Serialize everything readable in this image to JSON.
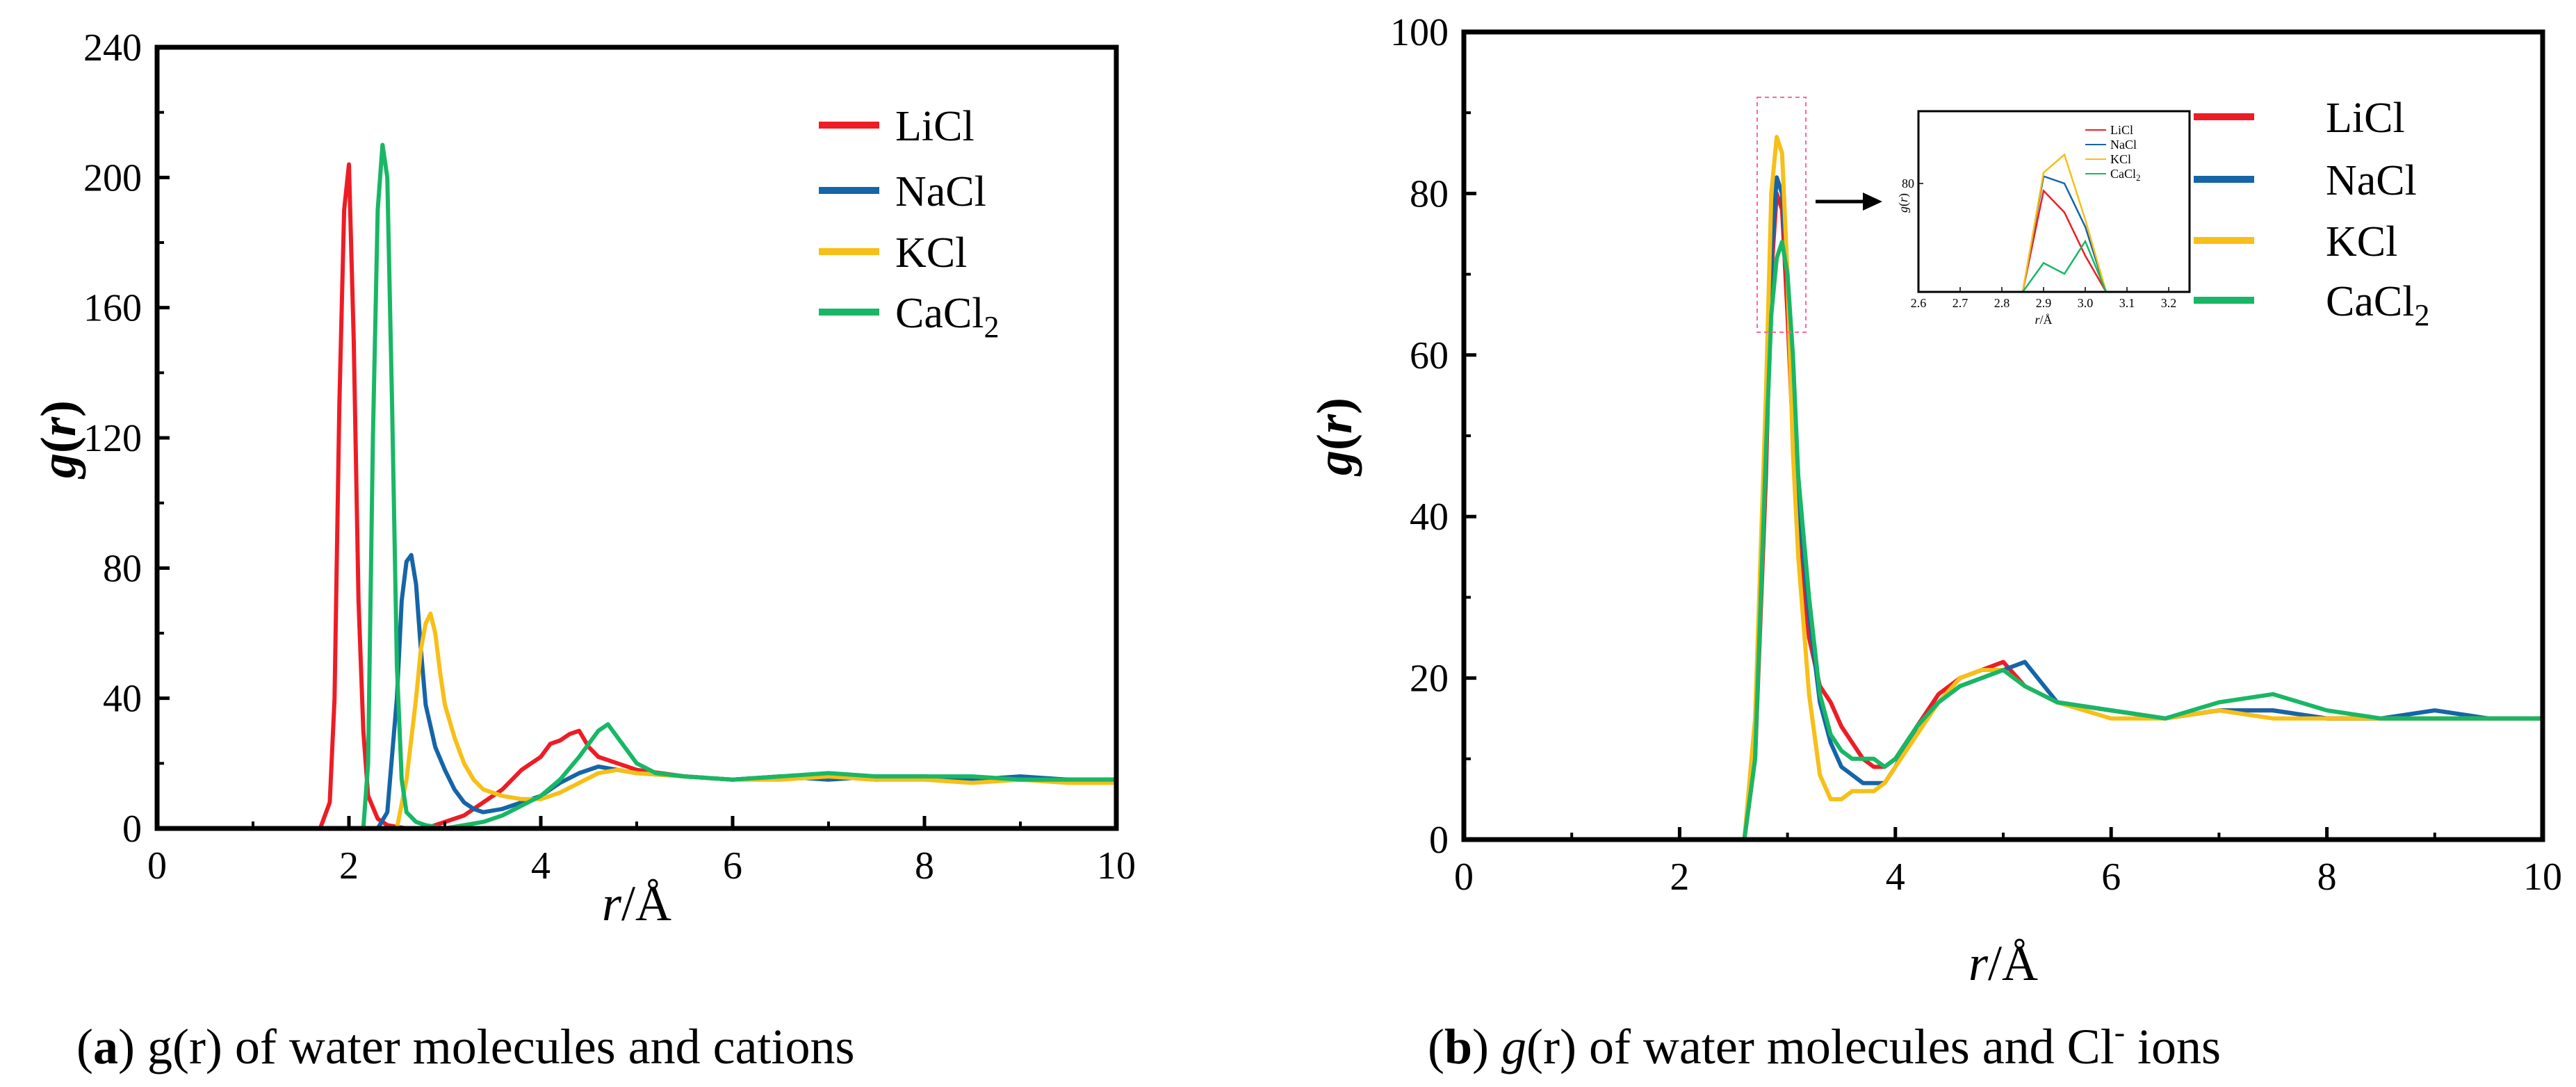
{
  "colors": {
    "LiCl": "#ee1c25",
    "NaCl": "#1565a8",
    "KCl": "#f7bf17",
    "CaCl2": "#18b765"
  },
  "captions": {
    "a": {
      "label": "a",
      "text": " g(r) of water molecules and cations"
    },
    "b": {
      "label": "b",
      "text_italic": "g",
      "text": "(r) of water molecules and Cl",
      "sup": "-",
      "tail": " ions"
    }
  },
  "legend": {
    "LiCl": "LiCl",
    "NaCl": "NaCl",
    "KCl": "KCl",
    "CaCl2_base": "CaCl",
    "CaCl2_sub": "2"
  },
  "chart_data": [
    {
      "id": "a",
      "type": "line",
      "title": "(a) g(r) of water molecules and cations",
      "xlabel": "r/Å",
      "ylabel": "g(r)",
      "xlim": [
        0,
        10
      ],
      "ylim": [
        0,
        240
      ],
      "xticks": [
        0,
        2,
        4,
        6,
        8,
        10
      ],
      "yticks": [
        0,
        40,
        80,
        120,
        160,
        200,
        240
      ],
      "legend_position": "top-right",
      "series": [
        {
          "name": "LiCl",
          "color_key": "LiCl",
          "x": [
            0,
            1.7,
            1.8,
            1.85,
            1.9,
            1.95,
            2.0,
            2.05,
            2.1,
            2.15,
            2.2,
            2.3,
            2.4,
            2.6,
            2.8,
            3.0,
            3.2,
            3.4,
            3.6,
            3.8,
            3.9,
            4.0,
            4.1,
            4.2,
            4.3,
            4.4,
            4.5,
            4.6,
            4.8,
            5.0,
            5.5,
            6.0,
            6.5,
            7.0,
            7.5,
            8.0,
            8.5,
            9.0,
            9.5,
            10.0
          ],
          "y": [
            0,
            0,
            8,
            40,
            130,
            190,
            204,
            150,
            70,
            30,
            10,
            3,
            1,
            0,
            0,
            2,
            4,
            8,
            12,
            18,
            20,
            22,
            26,
            27,
            29,
            30,
            25,
            22,
            20,
            18,
            16,
            15,
            16,
            16,
            15,
            16,
            15,
            15,
            15,
            15
          ]
        },
        {
          "name": "NaCl",
          "color_key": "NaCl",
          "x": [
            0,
            2.3,
            2.4,
            2.5,
            2.55,
            2.6,
            2.65,
            2.7,
            2.75,
            2.8,
            2.9,
            3.0,
            3.1,
            3.2,
            3.3,
            3.4,
            3.6,
            3.8,
            4.0,
            4.2,
            4.4,
            4.6,
            4.8,
            5.0,
            5.5,
            6.0,
            6.5,
            7.0,
            7.5,
            8.0,
            8.5,
            9.0,
            9.5,
            10.0
          ],
          "y": [
            0,
            0,
            5,
            40,
            70,
            82,
            84,
            75,
            55,
            38,
            25,
            18,
            12,
            8,
            6,
            5,
            6,
            8,
            10,
            14,
            17,
            19,
            18,
            17,
            16,
            15,
            16,
            15,
            16,
            16,
            15,
            16,
            15,
            15
          ]
        },
        {
          "name": "KCl",
          "color_key": "KCl",
          "x": [
            0,
            2.5,
            2.6,
            2.7,
            2.75,
            2.8,
            2.85,
            2.9,
            2.95,
            3.0,
            3.1,
            3.2,
            3.3,
            3.4,
            3.6,
            3.8,
            4.0,
            4.2,
            4.4,
            4.6,
            4.8,
            5.0,
            5.5,
            6.0,
            6.5,
            7.0,
            7.5,
            8.0,
            8.5,
            9.0,
            9.5,
            10.0
          ],
          "y": [
            0,
            0,
            15,
            40,
            55,
            63,
            66,
            60,
            48,
            38,
            28,
            20,
            15,
            12,
            10,
            9,
            9,
            11,
            14,
            17,
            18,
            17,
            16,
            15,
            15,
            16,
            15,
            15,
            14,
            15,
            14,
            14
          ]
        },
        {
          "name": "CaCl2",
          "color_key": "CaCl2",
          "x": [
            0,
            2.15,
            2.2,
            2.25,
            2.3,
            2.35,
            2.4,
            2.45,
            2.5,
            2.55,
            2.6,
            2.7,
            2.8,
            3.0,
            3.2,
            3.4,
            3.6,
            3.8,
            4.0,
            4.2,
            4.4,
            4.6,
            4.7,
            4.8,
            5.0,
            5.2,
            5.5,
            6.0,
            6.5,
            7.0,
            7.5,
            8.0,
            8.5,
            9.0,
            9.5,
            10.0
          ],
          "y": [
            0,
            0,
            20,
            120,
            190,
            210,
            200,
            130,
            50,
            15,
            5,
            2,
            1,
            0,
            1,
            2,
            4,
            7,
            10,
            15,
            22,
            30,
            32,
            28,
            20,
            17,
            16,
            15,
            16,
            17,
            16,
            16,
            16,
            15,
            15,
            15
          ]
        }
      ]
    },
    {
      "id": "b",
      "type": "line",
      "title": "(b) g(r) of water molecules and Cl- ions",
      "xlabel": "r/Å",
      "ylabel": "g(r)",
      "xlim": [
        0,
        10
      ],
      "ylim": [
        0,
        100
      ],
      "xticks": [
        0,
        2,
        4,
        6,
        8,
        10
      ],
      "yticks": [
        0,
        20,
        40,
        60,
        80,
        100
      ],
      "legend_position": "top-right",
      "series": [
        {
          "name": "LiCl",
          "color_key": "LiCl",
          "x": [
            0,
            2.6,
            2.7,
            2.8,
            2.85,
            2.9,
            2.95,
            3.0,
            3.05,
            3.1,
            3.2,
            3.3,
            3.4,
            3.5,
            3.6,
            3.7,
            3.8,
            3.9,
            4.0,
            4.2,
            4.4,
            4.6,
            4.8,
            5.0,
            5.2,
            5.5,
            6.0,
            6.5,
            7.0,
            7.5,
            8.0,
            8.5,
            9.0,
            9.5,
            10.0
          ],
          "y": [
            0,
            0,
            10,
            45,
            70,
            80,
            78,
            65,
            50,
            38,
            25,
            19,
            17,
            14,
            12,
            10,
            9,
            9,
            10,
            14,
            18,
            20,
            21,
            22,
            19,
            17,
            16,
            15,
            16,
            16,
            15,
            15,
            15,
            15,
            15
          ]
        },
        {
          "name": "NaCl",
          "color_key": "NaCl",
          "x": [
            0,
            2.6,
            2.7,
            2.8,
            2.85,
            2.9,
            2.95,
            3.0,
            3.05,
            3.1,
            3.2,
            3.3,
            3.4,
            3.5,
            3.6,
            3.7,
            3.8,
            3.9,
            4.0,
            4.2,
            4.4,
            4.6,
            4.8,
            5.0,
            5.2,
            5.5,
            6.0,
            6.5,
            7.0,
            7.5,
            8.0,
            8.5,
            9.0,
            9.5,
            10.0
          ],
          "y": [
            0,
            0,
            12,
            50,
            72,
            82,
            80,
            70,
            55,
            42,
            28,
            17,
            12,
            9,
            8,
            7,
            7,
            7,
            9,
            14,
            17,
            19,
            20,
            21,
            22,
            17,
            16,
            15,
            16,
            16,
            15,
            15,
            16,
            15,
            15
          ]
        },
        {
          "name": "KCl",
          "color_key": "KCl",
          "x": [
            0,
            2.6,
            2.7,
            2.8,
            2.85,
            2.9,
            2.95,
            3.0,
            3.05,
            3.1,
            3.2,
            3.3,
            3.4,
            3.5,
            3.6,
            3.7,
            3.8,
            3.9,
            4.0,
            4.2,
            4.4,
            4.6,
            4.8,
            5.0,
            5.2,
            5.5,
            6.0,
            6.5,
            7.0,
            7.5,
            8.0,
            8.5,
            9.0,
            9.5,
            10.0
          ],
          "y": [
            0,
            0,
            15,
            55,
            80,
            87,
            85,
            70,
            48,
            35,
            18,
            8,
            5,
            5,
            6,
            6,
            6,
            7,
            9,
            13,
            17,
            20,
            21,
            21,
            19,
            17,
            15,
            15,
            16,
            15,
            15,
            15,
            15,
            15,
            15
          ]
        },
        {
          "name": "CaCl2",
          "color_key": "CaCl2",
          "x": [
            0,
            2.6,
            2.7,
            2.8,
            2.85,
            2.9,
            2.95,
            3.0,
            3.05,
            3.1,
            3.2,
            3.3,
            3.4,
            3.5,
            3.6,
            3.7,
            3.8,
            3.9,
            4.0,
            4.2,
            4.4,
            4.6,
            4.8,
            5.0,
            5.2,
            5.5,
            6.0,
            6.5,
            7.0,
            7.5,
            8.0,
            8.5,
            9.0,
            9.5,
            10.0
          ],
          "y": [
            0,
            0,
            10,
            48,
            65,
            72,
            74,
            70,
            60,
            45,
            30,
            18,
            13,
            11,
            10,
            10,
            10,
            9,
            10,
            14,
            17,
            19,
            20,
            21,
            19,
            17,
            16,
            15,
            17,
            18,
            16,
            15,
            15,
            15,
            15
          ]
        }
      ],
      "inset": {
        "xlabel": "r/Å",
        "ylabel": "g(r)",
        "xlim": [
          2.6,
          3.25
        ],
        "ylim": [
          50,
          100
        ],
        "xticks": [
          2.6,
          2.7,
          2.8,
          2.9,
          3.0,
          3.1,
          3.2
        ],
        "xtick_labels": [
          "2.6",
          "2.7",
          "2.8",
          "2.9",
          "3.0",
          "3.1",
          "3.2"
        ],
        "yticks": [
          80
        ],
        "ytick_labels": [
          "80"
        ],
        "series": [
          {
            "name": "LiCl",
            "color_key": "LiCl",
            "x": [
              2.85,
              2.9,
              2.95,
              3.0,
              3.05
            ],
            "y": [
              50,
              78,
              72,
              60,
              50
            ]
          },
          {
            "name": "NaCl",
            "color_key": "NaCl",
            "x": [
              2.85,
              2.9,
              2.95,
              3.0,
              3.05
            ],
            "y": [
              50,
              82,
              80,
              68,
              50
            ]
          },
          {
            "name": "KCl",
            "color_key": "KCl",
            "x": [
              2.85,
              2.9,
              2.95,
              3.0,
              3.05
            ],
            "y": [
              50,
              83,
              88,
              70,
              50
            ]
          },
          {
            "name": "CaCl2",
            "color_key": "CaCl2",
            "x": [
              2.85,
              2.9,
              2.95,
              3.0,
              3.05
            ],
            "y": [
              50,
              58,
              55,
              64,
              50
            ]
          }
        ]
      }
    }
  ]
}
